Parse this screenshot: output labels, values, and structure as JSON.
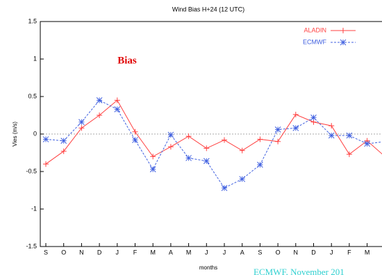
{
  "chart_data": {
    "type": "line",
    "title": "Wind Bias H+24 (12 UTC)",
    "x_label": "months",
    "y_label": "Vies (m/s)",
    "annotation": "Bias",
    "footer": "ECMWF, November 201",
    "categories": [
      "S",
      "O",
      "N",
      "D",
      "J",
      "F",
      "M",
      "A",
      "M",
      "J",
      "J",
      "A",
      "S",
      "O",
      "N",
      "D",
      "J",
      "F",
      "M",
      null
    ],
    "series": [
      {
        "name": "ALADIN",
        "color": "#ff4040",
        "marker": "plus",
        "values": [
          -0.4,
          -0.23,
          0.08,
          0.25,
          0.45,
          0.03,
          -0.3,
          -0.17,
          -0.03,
          -0.19,
          -0.08,
          -0.22,
          -0.07,
          -0.1,
          0.26,
          0.16,
          0.11,
          -0.27,
          -0.09,
          -0.3
        ]
      },
      {
        "name": "ECMWF",
        "color": "#4060e0",
        "marker": "star",
        "dashed": true,
        "values": [
          -0.07,
          -0.09,
          0.16,
          0.45,
          0.33,
          -0.08,
          -0.47,
          -0.01,
          -0.32,
          -0.36,
          -0.72,
          -0.6,
          -0.41,
          0.06,
          0.08,
          0.22,
          -0.02,
          -0.02,
          -0.13,
          -0.1
        ]
      }
    ],
    "ylim": [
      -1.5,
      1.5
    ],
    "yticks": [
      -1.5,
      -1,
      -0.5,
      0,
      0.5,
      1,
      1.5
    ],
    "legend": "top-right"
  }
}
